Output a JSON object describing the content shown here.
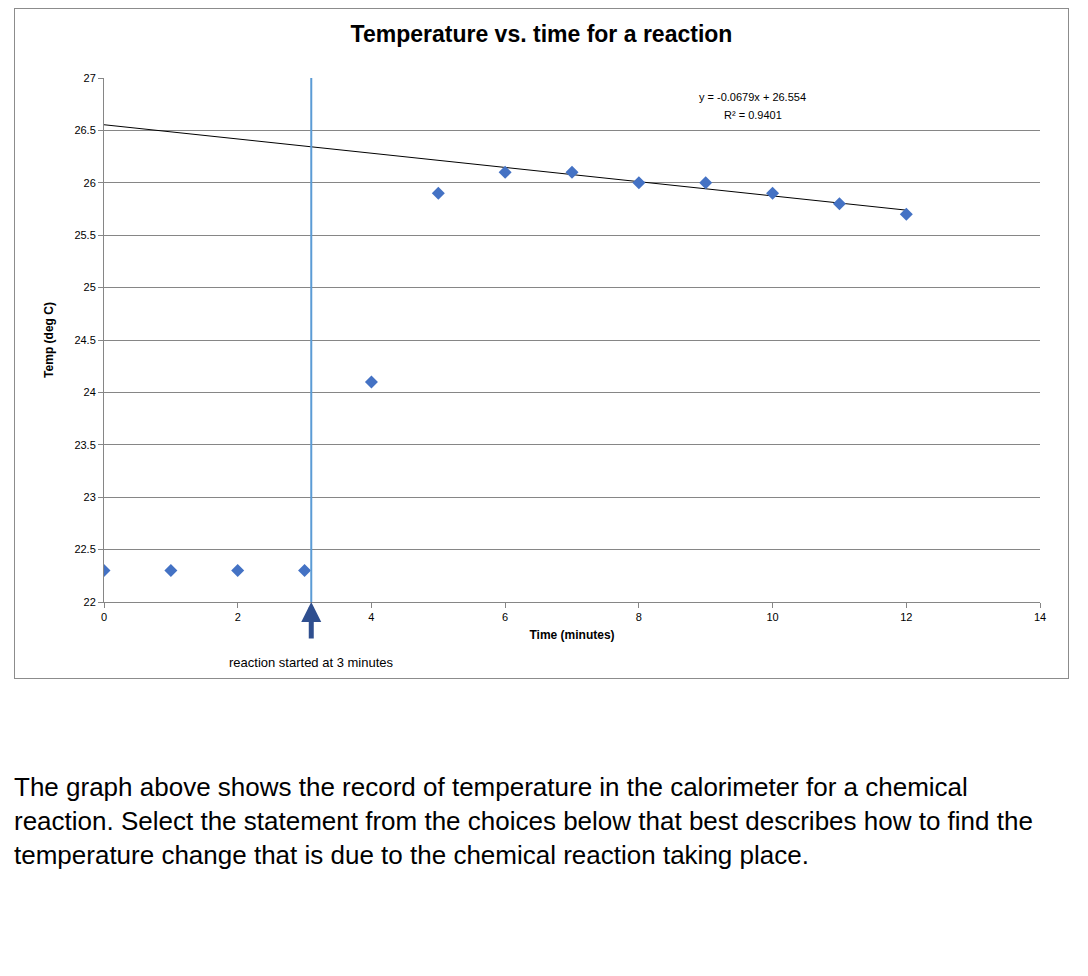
{
  "chart_data": {
    "type": "scatter",
    "title": "Temperature vs. time for a reaction",
    "x_label": "Time (minutes)",
    "y_label": "Temp (deg C)",
    "x": [
      0,
      1,
      2,
      3,
      4,
      5,
      6,
      7,
      8,
      9,
      10,
      11,
      12
    ],
    "values": [
      22.3,
      22.3,
      22.3,
      22.3,
      24.1,
      25.9,
      26.1,
      26.1,
      26.0,
      26.0,
      25.9,
      25.8,
      25.7
    ],
    "color": "#4472c4",
    "marker": "diamond",
    "trendline": {
      "x": [
        0,
        12
      ],
      "values": [
        26.554,
        25.739
      ],
      "color": "#000000"
    },
    "reaction_start": {
      "x": 3.1,
      "color": "#5b9bd5",
      "arrow_color": "#2f4f8f"
    },
    "annotations": [
      {
        "text": "y = -0.0679x + 26.554",
        "x": 9.7,
        "y": 26.82
      },
      {
        "text": "R² = 0.9401",
        "x": 9.7,
        "y": 26.65
      },
      {
        "text": "reaction started at 3 minutes",
        "x": 3.1
      }
    ],
    "xlim": [
      0,
      14
    ],
    "xticks": [
      0,
      2,
      4,
      6,
      8,
      10,
      12,
      14
    ],
    "ylim": [
      22,
      27
    ],
    "yticks": [
      22,
      22.5,
      23,
      23.5,
      24,
      24.5,
      25,
      25.5,
      26,
      26.5,
      27
    ],
    "grid": true
  },
  "question": "The graph above shows the record of temperature in the calorimeter for a chemical reaction.  Select the statement from the choices below that best describes how to find the temperature change that is due to the chemical reaction taking place."
}
